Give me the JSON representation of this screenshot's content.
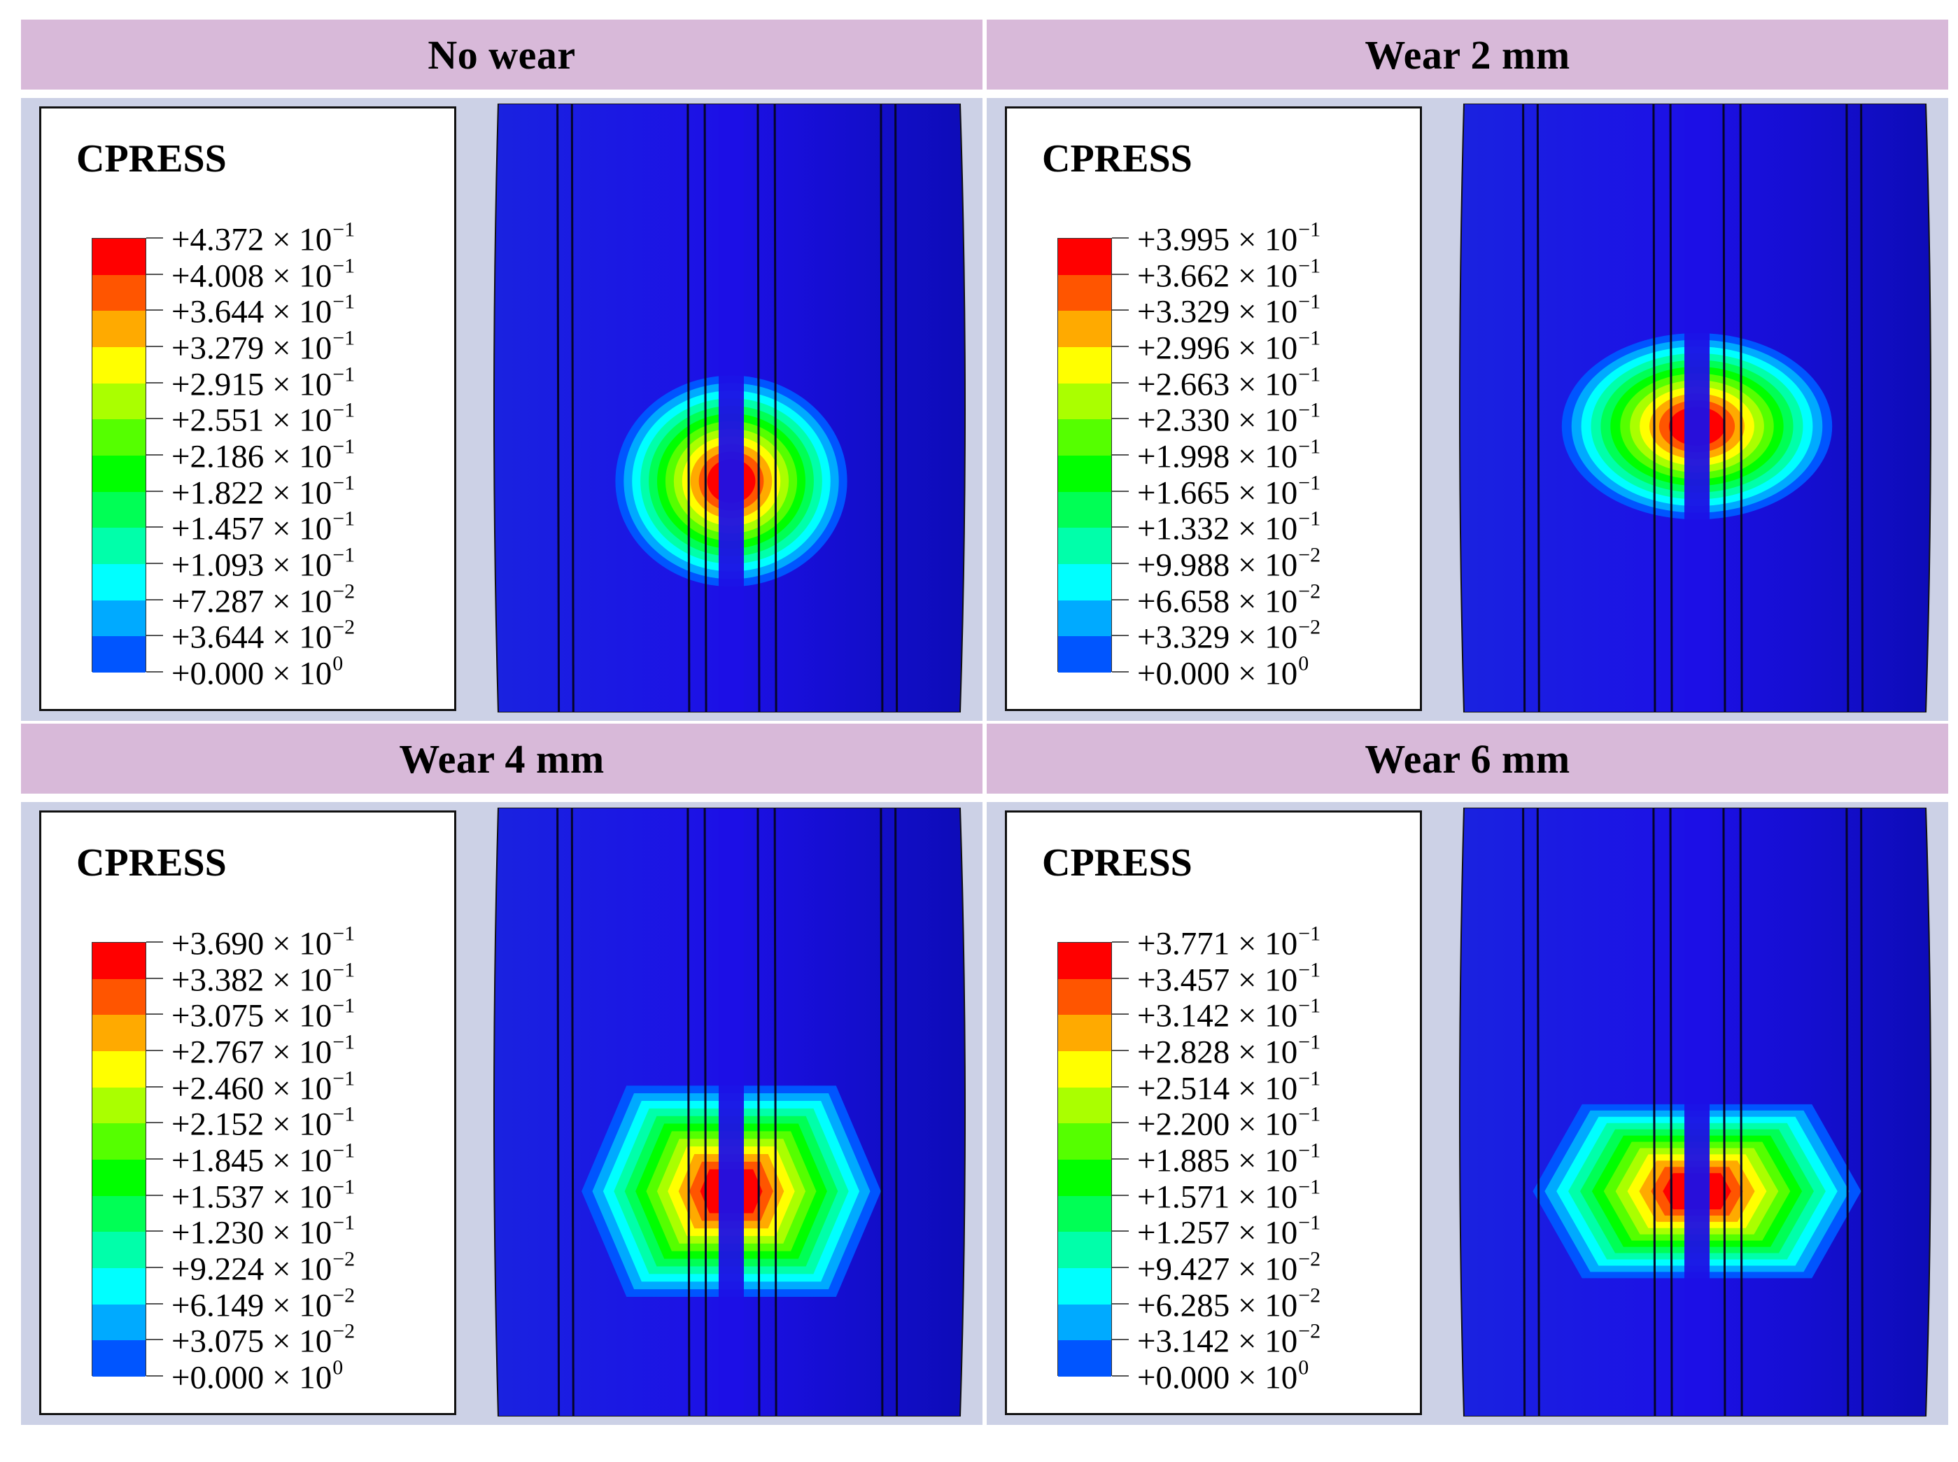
{
  "figure": {
    "colorbar_colors": [
      "#ff0000",
      "#ff5500",
      "#ffaa00",
      "#ffff00",
      "#aaff00",
      "#55ff00",
      "#00ff00",
      "#00ff55",
      "#00ffaa",
      "#00ffff",
      "#00aaff",
      "#0055ff",
      "#0000ff"
    ],
    "background_blue": "#1c10e6",
    "header_color": "#d8b9d9",
    "body_color": "#ccd1e6",
    "panels": [
      {
        "title": "No wear",
        "legend_title": "CPRESS",
        "legend_values": [
          "+4.372 × 10",
          "+4.008 × 10",
          "+3.644 × 10",
          "+3.279 × 10",
          "+2.915 × 10",
          "+2.551 × 10",
          "+2.186 × 10",
          "+1.822 × 10",
          "+1.457 × 10",
          "+1.093 × 10",
          "+7.287 × 10",
          "+3.644 × 10",
          "+0.000 × 10"
        ],
        "legend_exponents": [
          "−1",
          "−1",
          "−1",
          "−1",
          "−1",
          "−1",
          "−1",
          "−1",
          "−1",
          "−1",
          "−2",
          "−2",
          "0"
        ],
        "contact_shape": "oval",
        "contact_rx": 0.24,
        "contact_ry": 0.17,
        "contact_cy": 0.62
      },
      {
        "title": "Wear 2 mm",
        "legend_title": "CPRESS",
        "legend_values": [
          "+3.995 × 10",
          "+3.662 × 10",
          "+3.329 × 10",
          "+2.996 × 10",
          "+2.663 × 10",
          "+2.330 × 10",
          "+1.998 × 10",
          "+1.665 × 10",
          "+1.332 × 10",
          "+9.988 × 10",
          "+6.658 × 10",
          "+3.329 × 10",
          "+0.000 × 10"
        ],
        "legend_exponents": [
          "−1",
          "−1",
          "−1",
          "−1",
          "−1",
          "−1",
          "−1",
          "−1",
          "−1",
          "−2",
          "−2",
          "−2",
          "0"
        ],
        "contact_shape": "oval",
        "contact_rx": 0.28,
        "contact_ry": 0.15,
        "contact_cy": 0.53
      },
      {
        "title": "Wear 4 mm",
        "legend_title": "CPRESS",
        "legend_values": [
          "+3.690 × 10",
          "+3.382 × 10",
          "+3.075 × 10",
          "+2.767 × 10",
          "+2.460 × 10",
          "+2.152 × 10",
          "+1.845 × 10",
          "+1.537 × 10",
          "+1.230 × 10",
          "+9.224 × 10",
          "+6.149 × 10",
          "+3.075 × 10",
          "+0.000 × 10"
        ],
        "legend_exponents": [
          "−1",
          "−1",
          "−1",
          "−1",
          "−1",
          "−1",
          "−1",
          "−1",
          "−1",
          "−2",
          "−2",
          "−2",
          "0"
        ],
        "contact_shape": "hex",
        "contact_rx": 0.31,
        "contact_ry": 0.17,
        "contact_cy": 0.63
      },
      {
        "title": "Wear 6 mm",
        "legend_title": "CPRESS",
        "legend_values": [
          "+3.771 × 10",
          "+3.457 × 10",
          "+3.142 × 10",
          "+2.828 × 10",
          "+2.514 × 10",
          "+2.200 × 10",
          "+1.885 × 10",
          "+1.571 × 10",
          "+1.257 × 10",
          "+9.427 × 10",
          "+6.285 × 10",
          "+3.142 × 10",
          "+0.000 × 10"
        ],
        "legend_exponents": [
          "−1",
          "−1",
          "−1",
          "−1",
          "−1",
          "−1",
          "−1",
          "−1",
          "−1",
          "−2",
          "−2",
          "−2",
          "0"
        ],
        "contact_shape": "hex",
        "contact_rx": 0.34,
        "contact_ry": 0.14,
        "contact_cy": 0.63
      }
    ]
  }
}
